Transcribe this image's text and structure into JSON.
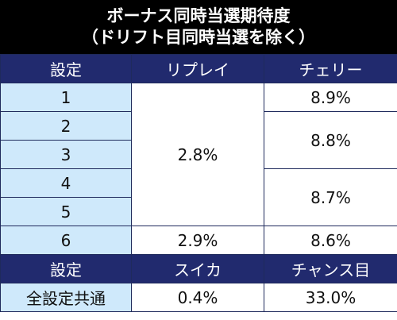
{
  "title": {
    "line1": "ボーナス同時当選期待度",
    "line2": "（ドリフト目同時当選を除く）"
  },
  "header1": {
    "col1": "設定",
    "col2": "リプレイ",
    "col3": "チェリー"
  },
  "settings": [
    "1",
    "2",
    "3",
    "4",
    "5",
    "6"
  ],
  "replay": {
    "s1_5": "2.8%",
    "s6": "2.9%"
  },
  "cherry": {
    "s1": "8.9%",
    "s2_3": "8.8%",
    "s4_5": "8.7%",
    "s6": "8.6%"
  },
  "header2": {
    "col1": "設定",
    "col2": "スイカ",
    "col3": "チャンス目"
  },
  "common": {
    "label": "全設定共通",
    "watermelon": "0.4%",
    "chance": "33.0%"
  }
}
